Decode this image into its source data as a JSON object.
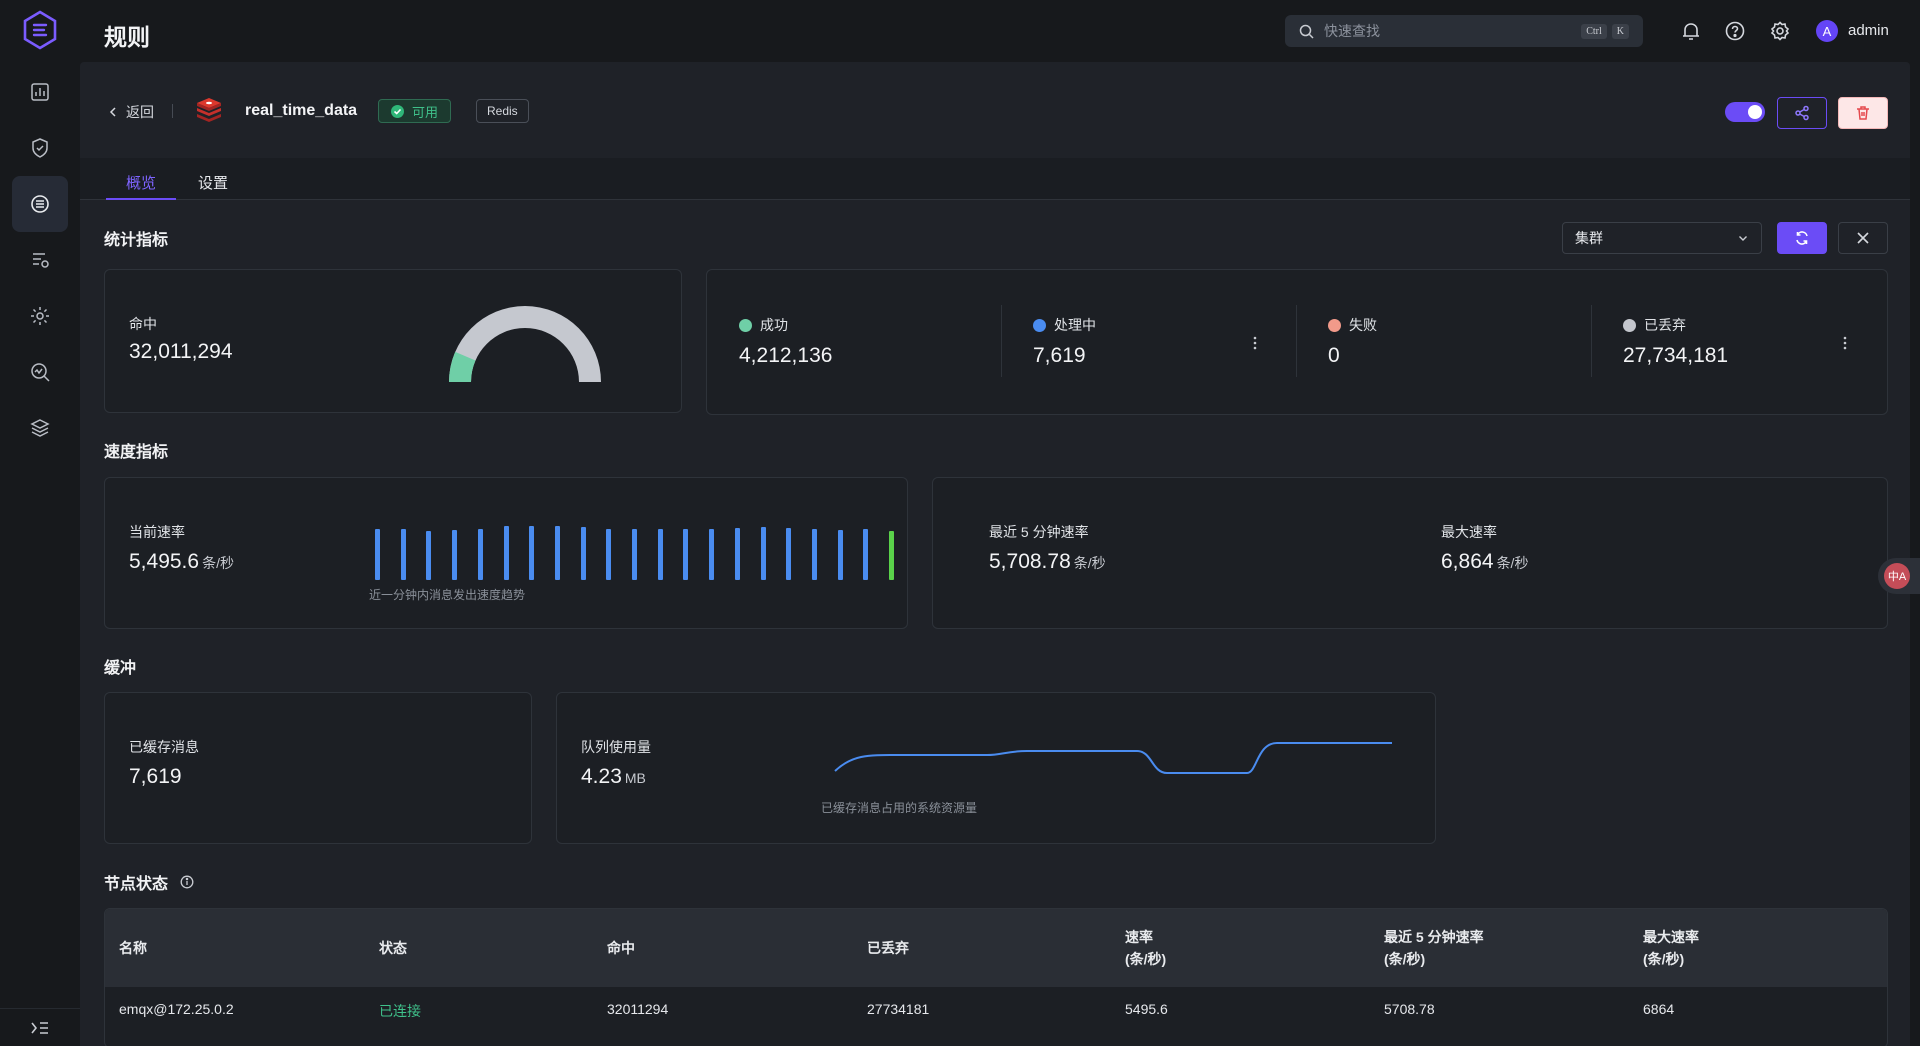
{
  "header": {
    "title": "规则",
    "search_placeholder": "快速查找",
    "kbd_ctrl": "Ctrl",
    "kbd_k": "K",
    "user_initial": "A",
    "username": "admin"
  },
  "rule": {
    "back_label": "返回",
    "name": "real_time_data",
    "status_label": "可用",
    "type_label": "Redis",
    "enabled": true
  },
  "tabs": [
    {
      "label": "概览",
      "active": true
    },
    {
      "label": "设置",
      "active": false
    }
  ],
  "stats": {
    "title": "统计指标",
    "cluster_select": "集群",
    "matched_label": "命中",
    "matched_value": "32,011,294",
    "gauge_success_fraction": 0.13,
    "items": [
      {
        "label": "成功",
        "value": "4,212,136",
        "color": "#6fcfa7"
      },
      {
        "label": "处理中",
        "value": "7,619",
        "color": "#4a8cf0"
      },
      {
        "label": "失败",
        "value": "0",
        "color": "#f19a8a"
      },
      {
        "label": "已丢弃",
        "value": "27,734,181",
        "color": "#c3c6cd"
      }
    ]
  },
  "speed": {
    "title": "速度指标",
    "current_label": "当前速率",
    "current_value": "5,495.6",
    "unit": "条/秒",
    "trend_caption": "近一分钟内消息发出速度趋势",
    "trend_levels": [
      0.95,
      0.95,
      0.9,
      0.92,
      0.95,
      1,
      1,
      1,
      0.98,
      0.95,
      0.95,
      0.95,
      0.95,
      0.95,
      0.97,
      0.98,
      0.97,
      0.95,
      0.93,
      0.95,
      0.9
    ],
    "last5_label": "最近 5 分钟速率",
    "last5_value": "5,708.78",
    "max_label": "最大速率",
    "max_value": "6,864"
  },
  "buffer": {
    "title": "缓冲",
    "cached_label": "已缓存消息",
    "cached_value": "7,619",
    "queue_label": "队列使用量",
    "queue_value": "4.23",
    "queue_unit": "MB",
    "queue_caption": "已缓存消息占用的系统资源量"
  },
  "nodes": {
    "title": "节点状态",
    "columns": [
      "名称",
      "状态",
      "命中",
      "已丢弃",
      "速率\n(条/秒)",
      "最近 5 分钟速率\n(条/秒)",
      "最大速率\n(条/秒)"
    ],
    "rows": [
      [
        "emqx@172.25.0.2",
        "已连接",
        "32011294",
        "27734181",
        "5495.6",
        "5708.78",
        "6864"
      ]
    ]
  },
  "colors": {
    "accent": "#6b4cf6",
    "success": "#3fc08a",
    "bars": "#4a8cf0",
    "last_bar": "#5ad24a"
  }
}
